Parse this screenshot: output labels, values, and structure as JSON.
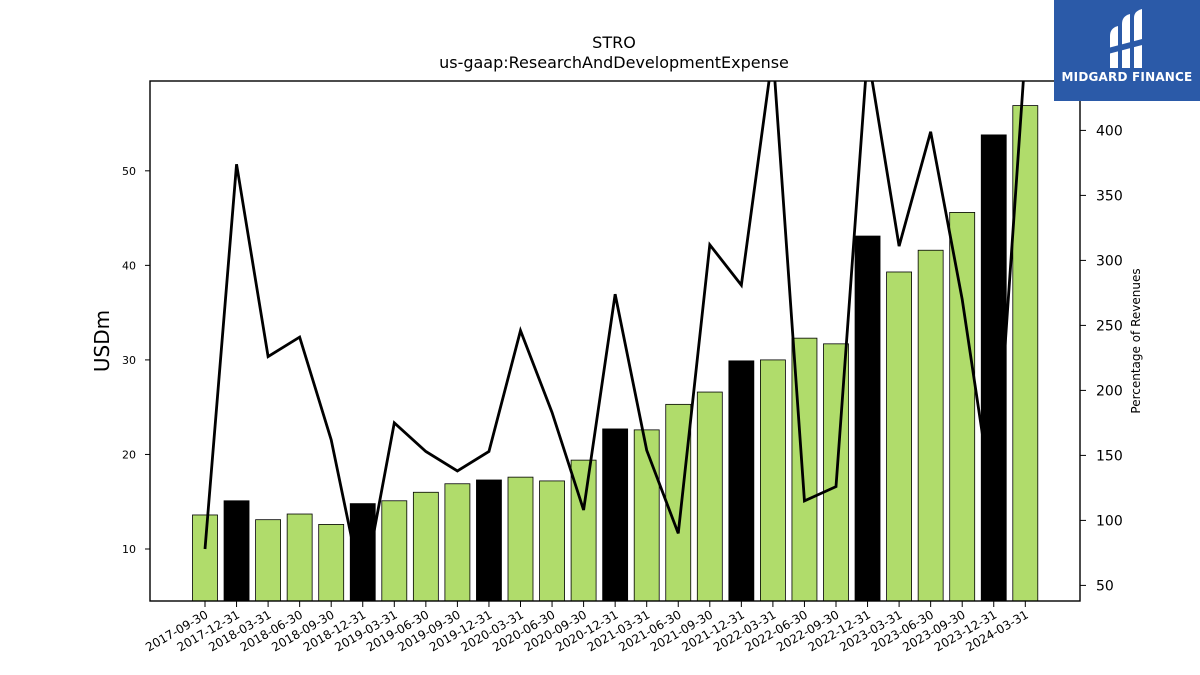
{
  "chart_data": {
    "type": "bar",
    "title": "STRO",
    "subtitle": "us-gaap:ResearchAndDevelopmentExpense",
    "ylabel": "USDm",
    "y2label": "Percentage of Revenues",
    "ylim": [
      4.5,
      59.5
    ],
    "y2lim": [
      38,
      438
    ],
    "yticks": [
      10,
      20,
      30,
      40,
      50
    ],
    "y2ticks": [
      50,
      100,
      150,
      200,
      250,
      300,
      350,
      400
    ],
    "categories": [
      "2017-09-30",
      "2017-12-31",
      "2018-03-31",
      "2018-06-30",
      "2018-09-30",
      "2018-12-31",
      "2019-03-31",
      "2019-06-30",
      "2019-09-30",
      "2019-12-31",
      "2020-03-31",
      "2020-06-30",
      "2020-09-30",
      "2020-12-31",
      "2021-03-31",
      "2021-06-30",
      "2021-09-30",
      "2021-12-31",
      "2022-03-31",
      "2022-06-30",
      "2022-09-30",
      "2022-12-31",
      "2023-03-31",
      "2023-06-30",
      "2023-09-30",
      "2023-12-31",
      "2024-03-31"
    ],
    "series": [
      {
        "type": "bar",
        "values": [
          13.6,
          15.1,
          13.1,
          13.7,
          12.6,
          14.8,
          15.1,
          16.0,
          16.9,
          17.3,
          17.6,
          17.2,
          19.4,
          22.7,
          22.6,
          25.3,
          26.6,
          29.9,
          30.0,
          32.3,
          31.7,
          43.1,
          39.3,
          41.6,
          45.6,
          53.8,
          56.9
        ],
        "colors": [
          "#b0dc6b",
          "#000000",
          "#b0dc6b",
          "#b0dc6b",
          "#b0dc6b",
          "#000000",
          "#b0dc6b",
          "#b0dc6b",
          "#b0dc6b",
          "#000000",
          "#b0dc6b",
          "#b0dc6b",
          "#b0dc6b",
          "#000000",
          "#b0dc6b",
          "#b0dc6b",
          "#b0dc6b",
          "#000000",
          "#b0dc6b",
          "#b0dc6b",
          "#b0dc6b",
          "#000000",
          "#b0dc6b",
          "#b0dc6b",
          "#b0dc6b",
          "#000000",
          "#b0dc6b"
        ]
      },
      {
        "type": "line",
        "axis": "right",
        "color": "#000000",
        "values": [
          78,
          374,
          226,
          241,
          162,
          45,
          175,
          153,
          138,
          153,
          246,
          183,
          108,
          274,
          154,
          90,
          312,
          281,
          460,
          115,
          126,
          460,
          311,
          399,
          270,
          108,
          460
        ]
      }
    ],
    "grid": false,
    "colors": {
      "bar": "#b0dc6b",
      "bar_highlight": "#000000",
      "line": "#000000"
    }
  },
  "logo": {
    "text": "MIDGARD FINANCE",
    "background": "#2b5aa8"
  }
}
